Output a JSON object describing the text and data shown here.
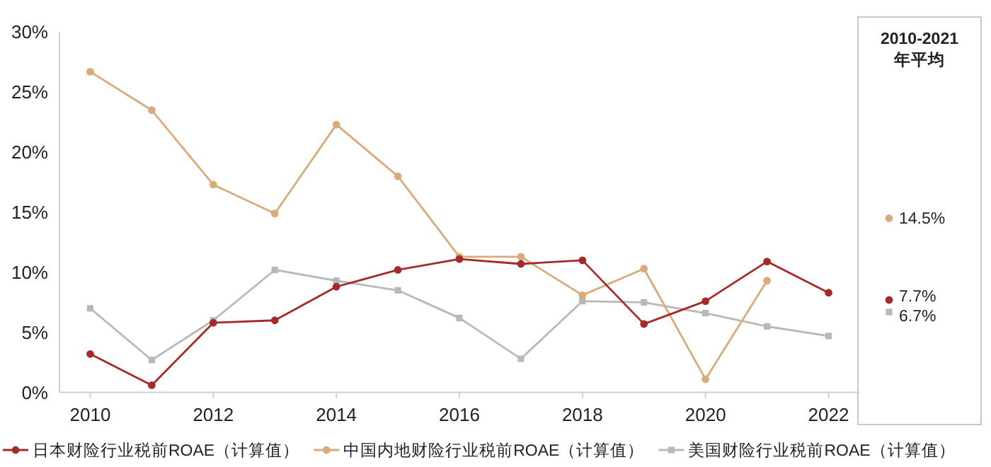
{
  "chart_data": [
    {
      "type": "line",
      "x": [
        2010,
        2011,
        2012,
        2013,
        2014,
        2015,
        2016,
        2017,
        2018,
        2019,
        2020,
        2021,
        2022
      ],
      "xlim": [
        2009.5,
        2022.5
      ],
      "xticks": [
        2010,
        2012,
        2014,
        2016,
        2018,
        2020,
        2022
      ],
      "ylim": [
        0,
        30
      ],
      "yticks": [
        {
          "value": 0,
          "label": "0%"
        },
        {
          "value": 5,
          "label": "5%"
        },
        {
          "value": 10,
          "label": "10%"
        },
        {
          "value": 15,
          "label": "15%"
        },
        {
          "value": 20,
          "label": "20%"
        },
        {
          "value": 25,
          "label": "25%"
        },
        {
          "value": 30,
          "label": "30%"
        }
      ],
      "legend": "bottom",
      "grid": false,
      "line_style": "solid",
      "series": [
        {
          "name": "日本财险行业税前ROAE（计算值）",
          "color": "#a52a2a",
          "marker": "circle",
          "values": [
            3.2,
            0.6,
            5.8,
            6.0,
            8.8,
            10.2,
            11.1,
            10.7,
            11.0,
            5.7,
            7.6,
            10.9,
            8.3
          ]
        },
        {
          "name": "中国内地财险行业税前ROAE（计算值）",
          "color": "#d9aa7a",
          "marker": "circle",
          "values": [
            26.7,
            23.5,
            17.3,
            14.9,
            22.3,
            18.0,
            11.3,
            11.3,
            8.1,
            10.3,
            1.1,
            9.3,
            null
          ]
        },
        {
          "name": "美国财险行业税前ROAE（计算值）",
          "color": "#b8b8b8",
          "marker": "square",
          "values": [
            7.0,
            2.7,
            6.0,
            10.2,
            9.3,
            8.5,
            6.2,
            2.8,
            7.6,
            7.5,
            6.6,
            5.5,
            4.7
          ]
        }
      ]
    },
    {
      "type": "other",
      "title": "2010-2021\n年平均",
      "categories": [
        null,
        null,
        null
      ],
      "values": [
        14.5,
        7.7,
        6.7
      ],
      "value_labels": [
        "14.5%",
        "7.7%",
        "6.7%"
      ],
      "colors": [
        "#d9aa7a",
        "#a52a2a",
        "#b8b8b8"
      ]
    }
  ]
}
